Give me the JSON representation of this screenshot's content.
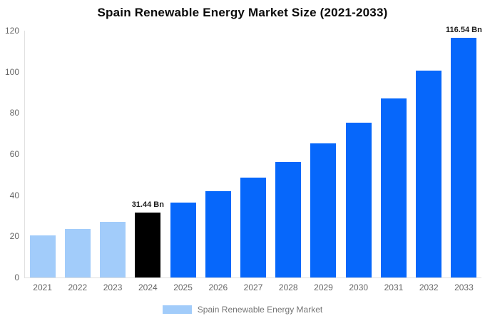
{
  "chart_data": {
    "type": "bar",
    "title": "Spain Renewable Energy Market Size (2021-2033)",
    "categories": [
      "2021",
      "2022",
      "2023",
      "2024",
      "2025",
      "2026",
      "2027",
      "2028",
      "2029",
      "2030",
      "2031",
      "2032",
      "2033"
    ],
    "values": [
      20.3,
      23.5,
      27.2,
      31.44,
      36.4,
      42.1,
      48.7,
      56.3,
      65.1,
      75.3,
      87.1,
      100.5,
      116.54
    ],
    "bar_colors": [
      "#a2ccfa",
      "#a2ccfa",
      "#a2ccfa",
      "#000000",
      "#0667fb",
      "#0667fb",
      "#0667fb",
      "#0667fb",
      "#0667fb",
      "#0667fb",
      "#0667fb",
      "#0667fb",
      "#0667fb"
    ],
    "data_labels": [
      null,
      null,
      null,
      "31.44 Bn",
      null,
      null,
      null,
      null,
      null,
      null,
      null,
      null,
      "116.54 Bn"
    ],
    "y_ticks": [
      0,
      20,
      40,
      60,
      80,
      100,
      120
    ],
    "ylim": [
      0,
      120
    ],
    "xlabel": "",
    "ylabel": "",
    "grid": false,
    "legend": {
      "position": "bottom",
      "entries": [
        {
          "label": "Spain Renewable Energy Market",
          "color": "#a2ccfa"
        }
      ]
    }
  },
  "colors": {
    "bar_blue": "#0667fb",
    "bar_light_blue": "#a2ccfa",
    "bar_highlight_black": "#000000",
    "axis_line": "#e0e0e0",
    "tick_text": "#666666",
    "legend_text": "#757575",
    "title_text": "#0a0a0a",
    "background": "#ffffff"
  }
}
